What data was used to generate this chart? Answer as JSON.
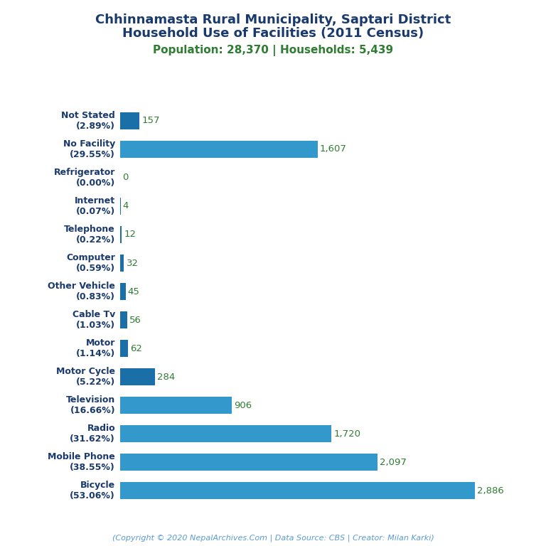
{
  "title_line1": "Chhinnamasta Rural Municipality, Saptari District",
  "title_line2": "Household Use of Facilities (2011 Census)",
  "subtitle": "Population: 28,370 | Households: 5,439",
  "footer": "(Copyright © 2020 NepalArchives.Com | Data Source: CBS | Creator: Milan Karki)",
  "categories": [
    "Not Stated\n(2.89%)",
    "No Facility\n(29.55%)",
    "Refrigerator\n(0.00%)",
    "Internet\n(0.07%)",
    "Telephone\n(0.22%)",
    "Computer\n(0.59%)",
    "Other Vehicle\n(0.83%)",
    "Cable Tv\n(1.03%)",
    "Motor\n(1.14%)",
    "Motor Cycle\n(5.22%)",
    "Television\n(16.66%)",
    "Radio\n(31.62%)",
    "Mobile Phone\n(38.55%)",
    "Bicycle\n(53.06%)"
  ],
  "values": [
    157,
    1607,
    0,
    4,
    12,
    32,
    45,
    56,
    62,
    284,
    906,
    1720,
    2097,
    2886
  ],
  "bar_color_dark": "#1a6fa8",
  "bar_color_light": "#3399cc",
  "title_color": "#1a3a6e",
  "subtitle_color": "#2e7d32",
  "value_color": "#2e7d32",
  "footer_color": "#5b9bd5",
  "background_color": "#ffffff",
  "xlim": [
    0,
    3200
  ]
}
